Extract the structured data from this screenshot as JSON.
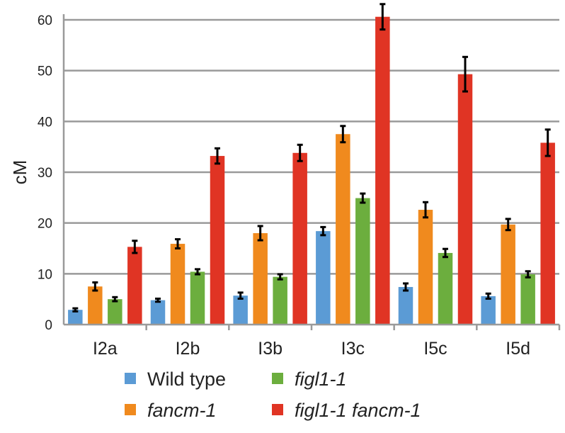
{
  "chart_data": {
    "type": "bar",
    "title": "",
    "xlabel": "",
    "ylabel": "cM",
    "ylim": [
      0,
      60
    ],
    "yticks": [
      0,
      10,
      20,
      30,
      40,
      50,
      60
    ],
    "grid": true,
    "legend_position": "bottom",
    "categories": [
      "I2a",
      "I2b",
      "I3b",
      "I3c",
      "I5c",
      "I5d"
    ],
    "series": [
      {
        "name": "Wild type",
        "italic": false,
        "color": "#5B9BD5",
        "values": [
          2.9,
          4.8,
          5.7,
          18.4,
          7.4,
          5.6
        ],
        "errors": [
          0.3,
          0.3,
          0.6,
          0.8,
          0.7,
          0.5
        ]
      },
      {
        "name": "fancm-1",
        "italic": true,
        "color": "#F08A1E",
        "values": [
          7.5,
          15.9,
          18.0,
          37.5,
          22.6,
          19.7
        ],
        "errors": [
          0.8,
          0.9,
          1.4,
          1.6,
          1.5,
          1.1
        ]
      },
      {
        "name": "figl1-1",
        "italic": true,
        "color": "#6CAE3E",
        "values": [
          5.0,
          10.4,
          9.4,
          24.9,
          14.1,
          9.9
        ],
        "errors": [
          0.4,
          0.5,
          0.5,
          0.9,
          0.8,
          0.6
        ]
      },
      {
        "name": "figl1-1 fancm-1",
        "italic": true,
        "color": "#E03424",
        "values": [
          15.3,
          33.2,
          33.8,
          60.6,
          49.3,
          35.8
        ],
        "errors": [
          1.2,
          1.5,
          1.6,
          2.5,
          3.4,
          2.6
        ]
      }
    ]
  }
}
